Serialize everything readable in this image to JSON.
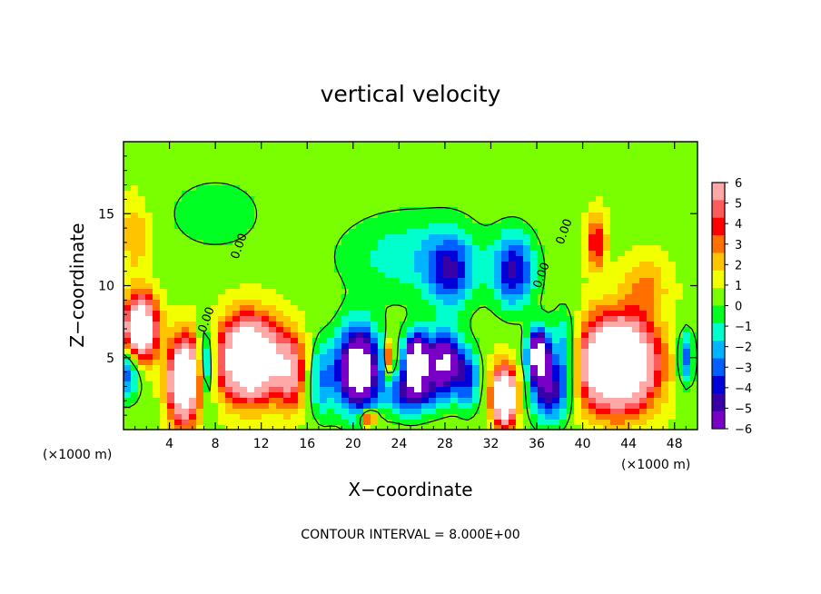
{
  "chart_data": {
    "type": "heatmap",
    "title": "vertical velocity",
    "xlabel": "X−coordinate",
    "ylabel": "Z−coordinate",
    "x_unit_left": "(×1000 m)",
    "x_unit_right": "(×1000 m)",
    "xlim": [
      0,
      50
    ],
    "ylim": [
      0,
      20
    ],
    "x_ticks": [
      4,
      8,
      12,
      16,
      20,
      24,
      28,
      32,
      36,
      40,
      44,
      48
    ],
    "x_tick_labels": [
      "4",
      "8",
      "12",
      "16",
      "20",
      "24",
      "28",
      "32",
      "36",
      "40",
      "44",
      "48"
    ],
    "y_ticks": [
      5,
      10,
      15
    ],
    "y_tick_labels": [
      "5",
      "10",
      "15"
    ],
    "colorbar": {
      "min": -6,
      "max": 6,
      "tick_values": [
        6,
        5,
        4,
        3,
        2,
        1,
        0,
        -1,
        -2,
        -3,
        -4,
        -5,
        -6
      ],
      "tick_labels": [
        "6",
        "5",
        "4",
        "3",
        "2",
        "1",
        "0",
        "−1",
        "−2",
        "−3",
        "−4",
        "−5",
        "−6"
      ],
      "colors": [
        "#ffa8a8",
        "#ff5a5a",
        "#ff0000",
        "#ff7000",
        "#ffc400",
        "#f2ff00",
        "#7aff00",
        "#00ff22",
        "#00ffcc",
        "#00b4ff",
        "#0060ff",
        "#0000d8",
        "#3a00a8",
        "#7a00c8"
      ]
    },
    "contour_label": "0.00",
    "footer": "CONTOUR INTERVAL = 8.000E+00",
    "features": [
      {
        "x": 1.5,
        "z": 7.0,
        "w": 10,
        "sx": 1.4,
        "sz": 2.2
      },
      {
        "x": 0.3,
        "z": 4.0,
        "w": -4,
        "sx": 1.2,
        "sz": 1.8
      },
      {
        "x": 5.3,
        "z": 3.4,
        "w": 11,
        "sx": 1.3,
        "sz": 2.8
      },
      {
        "x": 7.2,
        "z": 4.5,
        "w": -4,
        "sx": 0.8,
        "sz": 2.5
      },
      {
        "x": 11.0,
        "z": 4.9,
        "w": 12,
        "sx": 2.5,
        "sz": 2.7
      },
      {
        "x": 14.6,
        "z": 4.0,
        "w": 5,
        "sx": 1.3,
        "sz": 2.5
      },
      {
        "x": 17.3,
        "z": 3.5,
        "w": -3,
        "sx": 1.2,
        "sz": 2.5
      },
      {
        "x": 20.5,
        "z": 4.2,
        "w": -10,
        "sx": 1.8,
        "sz": 2.8
      },
      {
        "x": 21.4,
        "z": 0.8,
        "w": 5,
        "sx": 0.7,
        "sz": 0.6
      },
      {
        "x": 23.2,
        "z": 5.0,
        "w": 4,
        "sx": 0.4,
        "sz": 1.3
      },
      {
        "x": 25.5,
        "z": 4.8,
        "w": -10,
        "sx": 1.0,
        "sz": 1.8
      },
      {
        "x": 27.9,
        "z": 4.6,
        "w": -8,
        "sx": 1.5,
        "sz": 2.2
      },
      {
        "x": 25.0,
        "z": 2.5,
        "w": -5,
        "sx": 2.0,
        "sz": 1.5
      },
      {
        "x": 28.5,
        "z": 11.0,
        "w": -4,
        "sx": 2.0,
        "sz": 2.5
      },
      {
        "x": 30.0,
        "z": 3.5,
        "w": -4,
        "sx": 1.0,
        "sz": 2.0
      },
      {
        "x": 33.2,
        "z": 2.3,
        "w": 11,
        "sx": 1.0,
        "sz": 2.0
      },
      {
        "x": 34.0,
        "z": 11.0,
        "w": -5,
        "sx": 1.8,
        "sz": 2.5
      },
      {
        "x": 36.2,
        "z": 5.2,
        "w": -10,
        "sx": 0.9,
        "sz": 1.7
      },
      {
        "x": 37.0,
        "z": 2.5,
        "w": -5,
        "sx": 1.5,
        "sz": 2.0
      },
      {
        "x": 38.5,
        "z": 5.0,
        "w": -4,
        "sx": 1.3,
        "sz": 3.0
      },
      {
        "x": 41.2,
        "z": 13.0,
        "w": 4,
        "sx": 0.8,
        "sz": 1.9
      },
      {
        "x": 43.0,
        "z": 4.6,
        "w": 13,
        "sx": 3.2,
        "sz": 3.0
      },
      {
        "x": 45.5,
        "z": 10.0,
        "w": 2,
        "sx": 2.0,
        "sz": 2.0
      },
      {
        "x": 49.0,
        "z": 5.0,
        "w": -4,
        "sx": 0.7,
        "sz": 1.8
      },
      {
        "x": 25.0,
        "z": 12.0,
        "w": -2,
        "sx": 6.0,
        "sz": 3.0
      },
      {
        "x": 8.0,
        "z": 15.0,
        "w": -1,
        "sx": 5.0,
        "sz": 3.0
      },
      {
        "x": 1.0,
        "z": 13.5,
        "w": 2,
        "sx": 1.2,
        "sz": 2.5
      }
    ]
  }
}
